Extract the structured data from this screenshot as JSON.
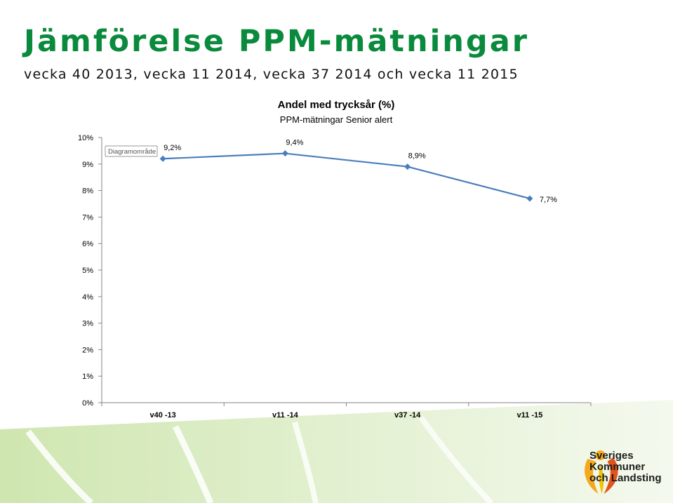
{
  "slide": {
    "title": "Jämförelse PPM-mätningar",
    "subtitle": "vecka 40 2013, vecka 11 2014, vecka 37 2014 och vecka 11 2015"
  },
  "colors": {
    "title": "#0a8a3c",
    "series": "#4a7ebb",
    "band": "#cfe6b0"
  },
  "chart_data": {
    "type": "line",
    "title": "Andel med trycksår (%)",
    "subtitle": "PPM-mätningar Senior alert",
    "categories": [
      "v40 -13",
      "v11 -14",
      "v37 -14",
      "v11 -15"
    ],
    "series": [
      {
        "values": [
          9.2,
          9.4,
          8.9,
          7.7
        ],
        "data_labels": [
          "9,2%",
          "9,4%",
          "8,9%",
          "7,7%"
        ]
      }
    ],
    "ylim": [
      0,
      10
    ],
    "y_ticks": [
      "0%",
      "1%",
      "2%",
      "3%",
      "4%",
      "5%",
      "6%",
      "7%",
      "8%",
      "9%",
      "10%"
    ],
    "grid": false,
    "tooltip": "Diagramområde"
  },
  "logo": {
    "line1": "Sveriges",
    "line2": "Kommuner",
    "line3": "och Landsting"
  }
}
